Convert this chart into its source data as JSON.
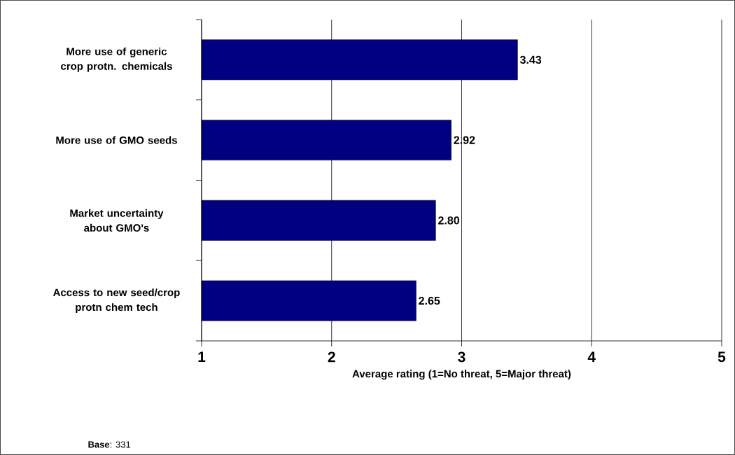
{
  "chart_data": {
    "type": "bar",
    "orientation": "horizontal",
    "categories": [
      "More use of generic crop protn. chemicals",
      "More use of GMO seeds",
      "Market uncertainty about GMO's",
      "Access to new seed/crop protn chem tech"
    ],
    "values": [
      3.43,
      2.92,
      2.8,
      2.65
    ],
    "value_labels": [
      "3.43",
      "2.92",
      "2.80",
      "2.65"
    ],
    "color": "#000080",
    "xlim": [
      1,
      5
    ],
    "xticks": [
      1,
      2,
      3,
      4,
      5
    ],
    "xlabel": "Average rating (1=No threat, 5=Major threat)",
    "grid": "x",
    "annotations": [
      "**Base**: 331"
    ]
  }
}
